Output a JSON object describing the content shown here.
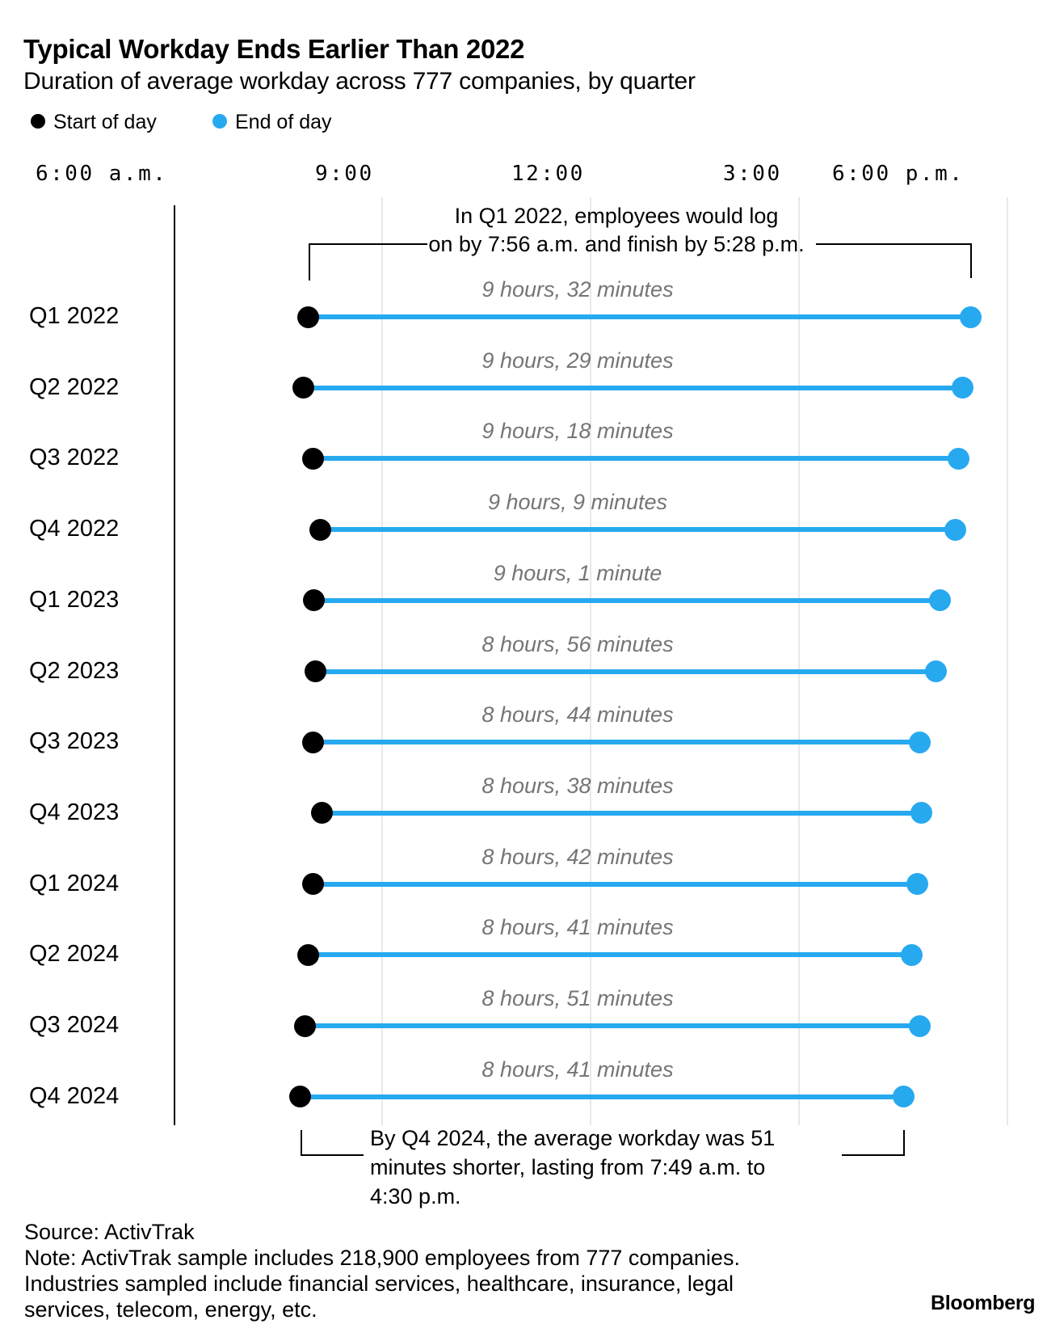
{
  "header": {
    "title": "Typical Workday Ends Earlier Than 2022",
    "subtitle": "Duration of average workday across 777 companies, by quarter"
  },
  "legend": {
    "items": [
      {
        "label": "Start of day",
        "color": "#000000"
      },
      {
        "label": "End of day",
        "color": "#27a9f0"
      }
    ]
  },
  "colors": {
    "end_blue": "#27a9f0",
    "start_black": "#000000",
    "duration_gray": "#757575",
    "gridline_gray": "#e8e8e8"
  },
  "chart_data": {
    "type": "scatter",
    "subtype": "dumbbell-range",
    "title": "Typical Workday Ends Earlier Than 2022",
    "subtitle": "Duration of average workday across 777 companies, by quarter",
    "categories": [
      "Q1 2022",
      "Q2 2022",
      "Q3 2022",
      "Q4 2022",
      "Q1 2023",
      "Q2 2023",
      "Q3 2023",
      "Q4 2023",
      "Q1 2024",
      "Q2 2024",
      "Q3 2024",
      "Q4 2024"
    ],
    "series": [
      {
        "name": "Start of day",
        "color": "#000000",
        "values_time": [
          "7:56 a.m.",
          "7:52 a.m.",
          "8:00 a.m.",
          "8:06 a.m.",
          "8:01 a.m.",
          "8:02 a.m.",
          "8:00 a.m.",
          "8:08 a.m.",
          "8:00 a.m.",
          "7:56 a.m.",
          "7:53 a.m.",
          "7:49 a.m."
        ],
        "values_minutes": [
          476,
          472,
          480,
          486,
          481,
          482,
          480,
          488,
          480,
          476,
          473,
          469
        ]
      },
      {
        "name": "End of day",
        "color": "#27a9f0",
        "values_time": [
          "5:28 p.m.",
          "5:21 p.m.",
          "5:18 p.m.",
          "5:15 p.m.",
          "5:02 p.m.",
          "4:58 p.m.",
          "4:44 p.m.",
          "4:46 p.m.",
          "4:42 p.m.",
          "4:37 p.m.",
          "4:44 p.m.",
          "4:30 p.m."
        ],
        "values_minutes": [
          1048,
          1041,
          1038,
          1035,
          1022,
          1018,
          1004,
          1006,
          1002,
          997,
          1004,
          990
        ]
      }
    ],
    "duration_labels": [
      "9 hours, 32 minutes",
      "9 hours, 29 minutes",
      "9 hours, 18 minutes",
      "9 hours, 9 minutes",
      "9 hours, 1 minute",
      "8 hours, 56 minutes",
      "8 hours, 44 minutes",
      "8 hours, 38 minutes",
      "8 hours, 42 minutes",
      "8 hours, 41 minutes",
      "8 hours, 51 minutes",
      "8 hours, 41 minutes"
    ],
    "x_axis": {
      "ticks": [
        "6:00 a.m.",
        "9:00",
        "12:00",
        "3:00",
        "6:00 p.m."
      ],
      "tick_minutes": [
        360,
        540,
        720,
        900,
        1080
      ],
      "range_minutes": [
        360,
        1080
      ],
      "grid": true,
      "grid_position": "vertical"
    },
    "legend_position": "top-left"
  },
  "annotations": {
    "top": {
      "line1": "In Q1 2022, employees would log",
      "line2": "on by 7:56 a.m. and finish by 5:28 p.m."
    },
    "bottom": {
      "line1": "By Q4 2024, the average workday was 51",
      "line2": "minutes shorter, lasting from 7:49 a.m. to",
      "line3": "4:30 p.m."
    }
  },
  "footer": {
    "source": "Source: ActivTrak",
    "note_lines": [
      "Note: ActivTrak sample includes 218,900 employees from 777 companies.",
      "Industries sampled include financial services, healthcare, insurance, legal",
      "services, telecom, energy, etc."
    ],
    "logo": "Bloomberg"
  }
}
